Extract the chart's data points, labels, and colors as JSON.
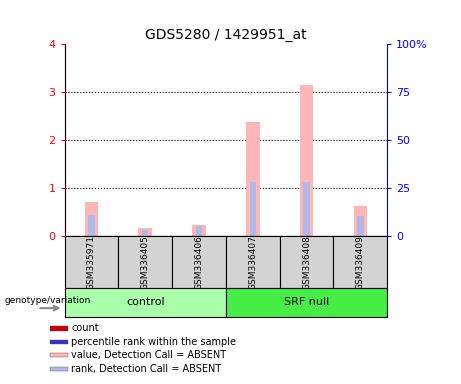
{
  "title": "GDS5280 / 1429951_at",
  "samples": [
    "GSM335971",
    "GSM336405",
    "GSM336406",
    "GSM336407",
    "GSM336408",
    "GSM336409"
  ],
  "ylim_left": [
    0,
    4
  ],
  "ylim_right": [
    0,
    100
  ],
  "yticks_left": [
    0,
    1,
    2,
    3,
    4
  ],
  "yticks_right": [
    0,
    25,
    50,
    75,
    100
  ],
  "yticklabels_right": [
    "0",
    "25",
    "50",
    "75",
    "100%"
  ],
  "absent_value_bars": [
    0.72,
    0.18,
    0.24,
    2.38,
    3.15,
    0.62
  ],
  "absent_rank_bars": [
    0.45,
    0.12,
    0.22,
    1.12,
    1.12,
    0.42
  ],
  "absent_value_color": "#ffb6b6",
  "absent_rank_color": "#b0b8e8",
  "count_color": "#cc0000",
  "percentile_color": "#3333cc",
  "sample_box_color": "#d3d3d3",
  "control_color": "#aaffaa",
  "srf_color": "#44ee44",
  "group_defs": [
    {
      "label": "control",
      "start": 0,
      "end": 2,
      "color": "#aaffaa"
    },
    {
      "label": "SRF null",
      "start": 3,
      "end": 5,
      "color": "#44ee44"
    }
  ],
  "legend_items": [
    {
      "label": "count",
      "color": "#cc0000"
    },
    {
      "label": "percentile rank within the sample",
      "color": "#3333cc"
    },
    {
      "label": "value, Detection Call = ABSENT",
      "color": "#ffb6b6"
    },
    {
      "label": "rank, Detection Call = ABSENT",
      "color": "#b0b8e8"
    }
  ],
  "absent_value_bar_width": 0.25,
  "absent_rank_bar_width": 0.12
}
